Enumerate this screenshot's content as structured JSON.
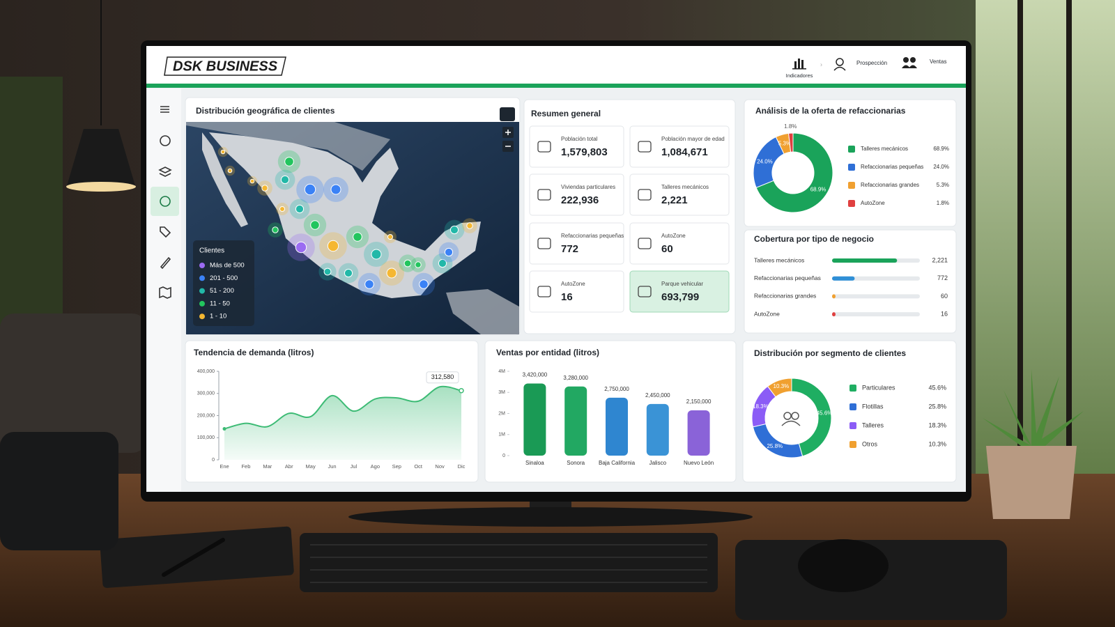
{
  "header": {
    "brand": "DSK BUSINESS",
    "nav": [
      "Indicadores",
      "Prospección",
      "Ventas"
    ]
  },
  "map": {
    "title": "Distribución geográfica de clientes",
    "legend_title": "Clientes",
    "legend": [
      {
        "label": "Más de 500",
        "color": "#9b6bf2"
      },
      {
        "label": "201 - 500",
        "color": "#3b82f6"
      },
      {
        "label": "51 - 200",
        "color": "#22b8a8"
      },
      {
        "label": "11 - 50",
        "color": "#22c55e"
      },
      {
        "label": "1 - 10",
        "color": "#f5b731"
      }
    ]
  },
  "summary": {
    "title": "Resumen general",
    "cards": [
      {
        "label": "Población total",
        "value": "1,579,803"
      },
      {
        "label": "Población mayor de edad",
        "value": "1,084,671"
      },
      {
        "label": "Viviendas particulares",
        "value": "222,936"
      },
      {
        "label": "Talleres mecánicos",
        "value": "2,221"
      },
      {
        "label": "Refaccionarias pequeñas",
        "value": "772"
      },
      {
        "label": "AutoZone",
        "value": "60"
      },
      {
        "label": "AutoZone",
        "value": "16"
      },
      {
        "label": "Parque vehicular",
        "value": "693,799"
      }
    ]
  },
  "chart_data": [
    {
      "type": "donut",
      "title": "Análisis de la oferta de refaccionarias",
      "categories": [
        "Talleres mecánicos",
        "Refaccionarias pequeñas",
        "Refaccionarias grandes",
        "AutoZone"
      ],
      "values": [
        68.9,
        24.0,
        5.3,
        1.8
      ],
      "value_labels": [
        "68.9%",
        "24.0%",
        "5.3%",
        "1.8%"
      ],
      "colors": [
        "#1aa35a",
        "#2f6fd6",
        "#f0a030",
        "#e04040"
      ]
    },
    {
      "type": "hbar",
      "title": "Cobertura por tipo de negocio",
      "categories": [
        "Talleres mecánicos",
        "Refaccionarias pequeñas",
        "Refaccionarias grandes",
        "AutoZone"
      ],
      "values": [
        2221,
        772,
        60,
        16
      ],
      "value_labels": [
        "2,221",
        "772",
        "60",
        "16"
      ],
      "colors": [
        "#1aa35a",
        "#2f8fd6",
        "#f0a030",
        "#e04040"
      ],
      "xlim": [
        0,
        3000
      ]
    },
    {
      "type": "area",
      "title": "Tendencia de demanda (litros)",
      "categories": [
        "Ene",
        "Feb",
        "Mar",
        "Abr",
        "May",
        "Jun",
        "Jul",
        "Ago",
        "Sep",
        "Oct",
        "Nov",
        "Dic"
      ],
      "values": [
        140000,
        165000,
        150000,
        210000,
        195000,
        290000,
        220000,
        275000,
        280000,
        265000,
        330000,
        312580
      ],
      "value_labels": [
        null,
        null,
        null,
        null,
        null,
        null,
        null,
        null,
        null,
        null,
        null,
        "312,580"
      ],
      "color": "#3dbb75",
      "ylim": [
        0,
        400000
      ],
      "yticks": [
        0,
        {
          "value": 100000,
          "label": "100,000"
        },
        {
          "value": 200000,
          "label": "200,000"
        },
        {
          "value": 300000,
          "label": "300,000"
        },
        {
          "value": 400000,
          "label": "400,000"
        }
      ]
    },
    {
      "type": "bar",
      "title": "Ventas por entidad (litros)",
      "categories": [
        "Sinaloa",
        "Sonora",
        "Baja California",
        "Jalisco",
        "Nuevo León"
      ],
      "values": [
        3420000,
        3280000,
        2750000,
        2450000,
        2150000
      ],
      "value_labels": [
        "3,420,000",
        "3,280,000",
        "2,750,000",
        "2,450,000",
        "2,150,000"
      ],
      "colors": [
        "#1a9a55",
        "#22a862",
        "#2f86d0",
        "#3a93d6",
        "#8a63d8"
      ],
      "ylim": [
        0,
        4000000
      ],
      "yticks": [
        0,
        {
          "value": 1000000,
          "label": "1M"
        },
        {
          "value": 2000000,
          "label": "2M"
        },
        {
          "value": 3000000,
          "label": "3M"
        },
        {
          "value": 4000000,
          "label": "4M"
        }
      ]
    },
    {
      "type": "donut",
      "title": "Distribución por segmento de clientes",
      "categories": [
        "Particulares",
        "Flotillas",
        "Talleres",
        "Otros"
      ],
      "values": [
        45.6,
        25.8,
        18.3,
        10.3
      ],
      "value_labels": [
        "45.6%",
        "25.8%",
        "18.3%",
        "10.3%"
      ],
      "colors": [
        "#1fae62",
        "#2f6fd6",
        "#8b5cf6",
        "#f0a030"
      ]
    }
  ]
}
